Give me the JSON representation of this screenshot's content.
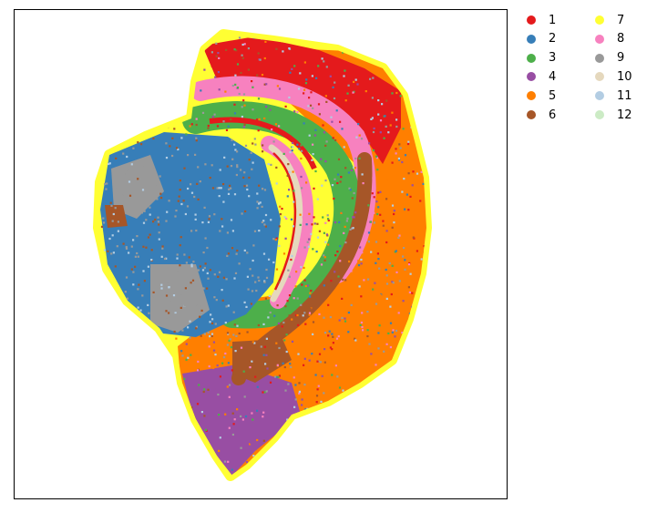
{
  "chart_data": {
    "type": "scatter",
    "title": "",
    "xlabel": "",
    "ylabel": "",
    "grid": false,
    "axis_ticks": false,
    "legend": {
      "placement": "outside-right",
      "columns": 2,
      "entries": [
        {
          "label": "1",
          "color": "#e41a1c"
        },
        {
          "label": "2",
          "color": "#377eb8"
        },
        {
          "label": "3",
          "color": "#4daf4a"
        },
        {
          "label": "4",
          "color": "#984ea3"
        },
        {
          "label": "5",
          "color": "#ff7f00"
        },
        {
          "label": "6",
          "color": "#a65628"
        },
        {
          "label": "7",
          "color": "#ffff33"
        },
        {
          "label": "8",
          "color": "#f781bf"
        },
        {
          "label": "9",
          "color": "#999999"
        },
        {
          "label": "10",
          "color": "#e5d8bd"
        },
        {
          "label": "11",
          "color": "#b3cde3"
        },
        {
          "label": "12",
          "color": "#ccebc5"
        }
      ]
    }
  }
}
